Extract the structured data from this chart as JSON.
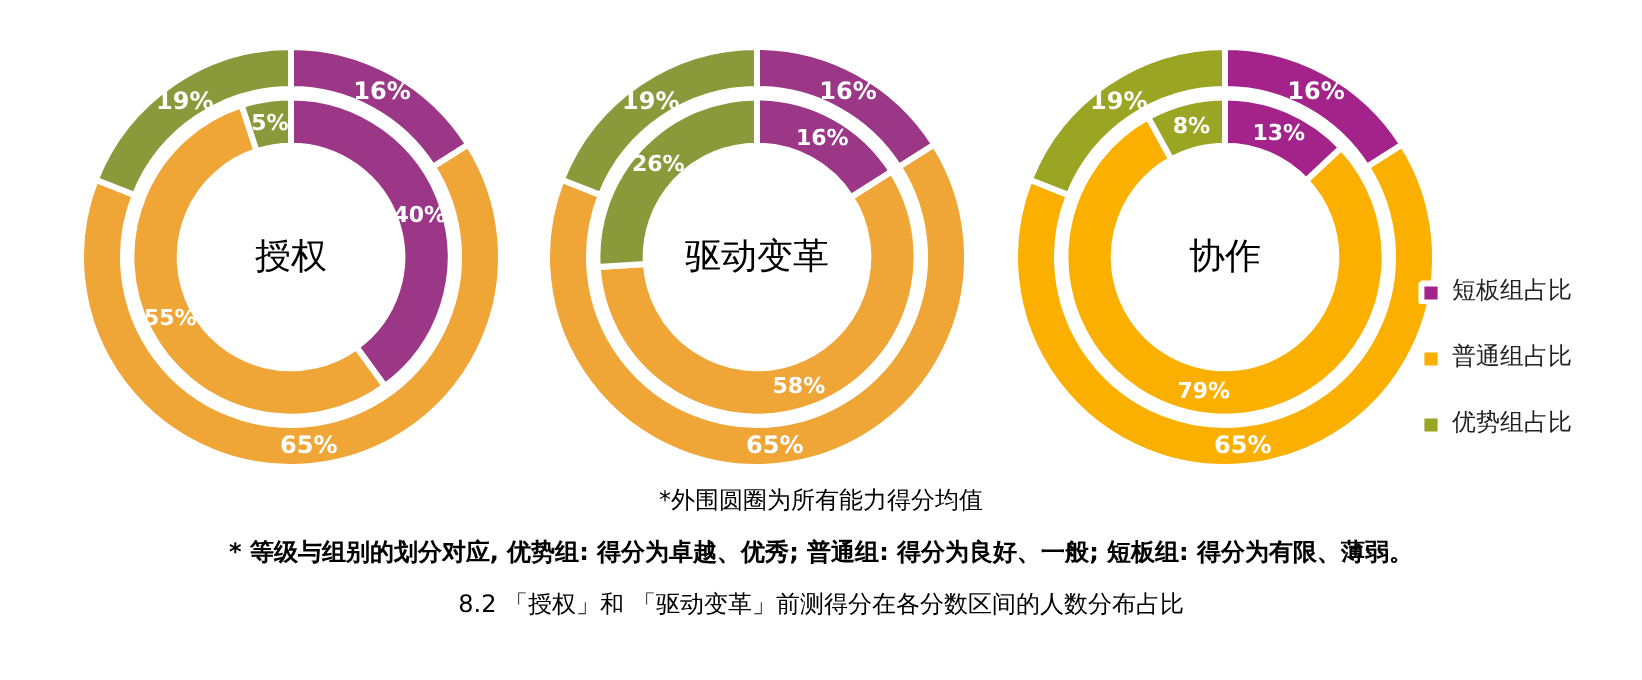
{
  "chart_data": [
    {
      "type": "donut",
      "title": "授权",
      "categories": [
        null,
        null,
        null
      ],
      "series": [
        {
          "colors": [
            "#9b3786",
            "#f0a537",
            "#8a9a3b"
          ],
          "values": [
            16,
            65,
            19
          ],
          "value_labels": [
            "16%",
            "65%",
            "19%"
          ]
        },
        {
          "colors": [
            "#9b3786",
            "#f0a537",
            "#8a9a3b"
          ],
          "values": [
            40,
            55,
            5
          ],
          "value_labels": [
            "40%",
            "55%",
            "5%"
          ]
        }
      ]
    },
    {
      "type": "donut",
      "title": "驱动变革",
      "categories": [
        null,
        null,
        null
      ],
      "series": [
        {
          "colors": [
            "#9b3786",
            "#f0a537",
            "#8a9a3b"
          ],
          "values": [
            16,
            65,
            19
          ],
          "value_labels": [
            "16%",
            "65%",
            "19%"
          ]
        },
        {
          "colors": [
            "#9b3786",
            "#f0a537",
            "#8a9a3b"
          ],
          "values": [
            16,
            58,
            26
          ],
          "value_labels": [
            "16%",
            "58%",
            "26%"
          ]
        }
      ]
    },
    {
      "type": "donut",
      "title": "协作",
      "categories": [
        "短板组占比",
        "普通组占比",
        "优势组占比"
      ],
      "legend": "right",
      "annotations": [
        "*外围圆圈为所有能力得分均值",
        "* 等级与组别的划分对应, 优势组: 得分为卓越、优秀; 普通组: 得分为良好、一般; 短板组: 得分为有限、薄弱。",
        "8.2 「授权」和 「驱动变革」前测得分在各分数区间的人数分布占比"
      ],
      "series": [
        {
          "colors": [
            "#a3238a",
            "#fbb000",
            "#9aa524"
          ],
          "values": [
            16,
            65,
            19
          ],
          "value_labels": [
            "16%",
            "65%",
            "19%"
          ]
        },
        {
          "colors": [
            "#a3238a",
            "#fbb000",
            "#9aa524"
          ],
          "values": [
            13,
            79,
            8
          ],
          "value_labels": [
            "13%",
            "79%",
            "8%"
          ]
        }
      ]
    }
  ]
}
